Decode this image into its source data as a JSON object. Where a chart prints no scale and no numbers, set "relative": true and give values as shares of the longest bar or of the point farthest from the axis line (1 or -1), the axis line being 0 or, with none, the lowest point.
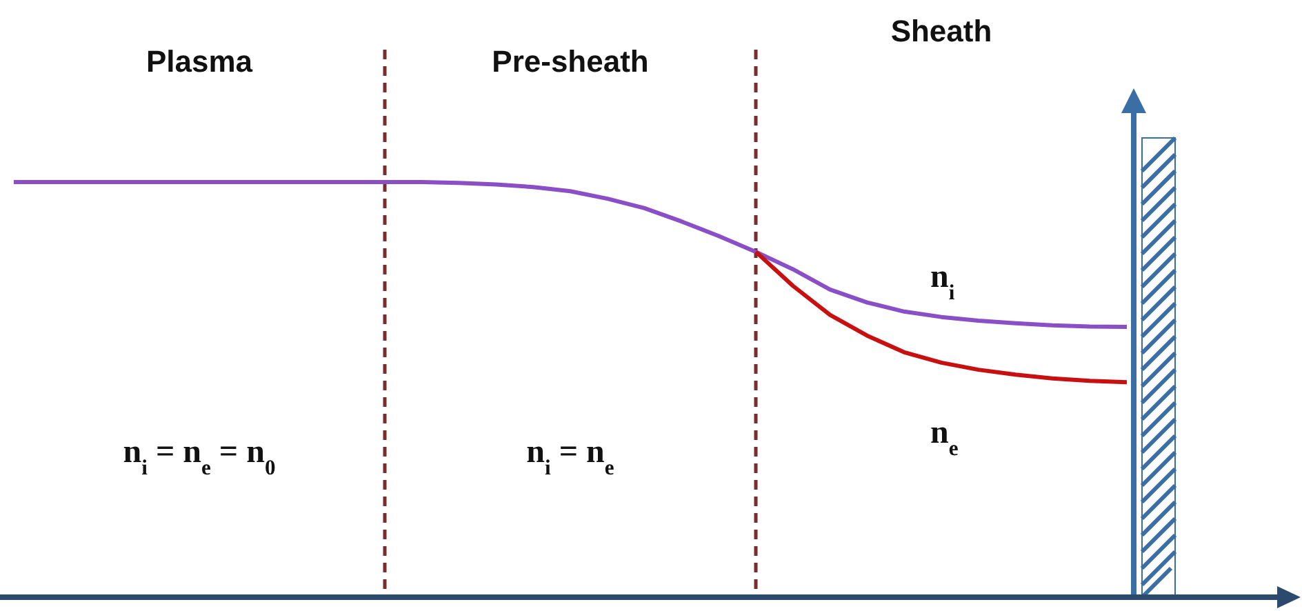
{
  "chart_data": {
    "type": "line",
    "relative": true,
    "categories": [
      null,
      null,
      null,
      null,
      null,
      null,
      null,
      null,
      null,
      null,
      null,
      null,
      null,
      null,
      null,
      null,
      null,
      null,
      null,
      null,
      null,
      null,
      null,
      null,
      null,
      null,
      null,
      null,
      null,
      null,
      null
    ],
    "series": [
      {
        "name": "n$_{i}$",
        "color": "#8a4fc6",
        "values": [
          1,
          1,
          1,
          1,
          1,
          1,
          1,
          1,
          1,
          1,
          1,
          1,
          0.998,
          0.994,
          0.988,
          0.978,
          0.96,
          0.937,
          0.905,
          0.87,
          0.832,
          0.79,
          0.741,
          0.71,
          0.688,
          0.675,
          0.666,
          0.66,
          0.655,
          0.652,
          0.651
        ]
      },
      {
        "name": "n$_{e}$",
        "color": "#c81010",
        "values": [
          null,
          null,
          null,
          null,
          null,
          null,
          null,
          null,
          null,
          null,
          null,
          null,
          null,
          null,
          null,
          null,
          null,
          null,
          null,
          null,
          0.832,
          0.75,
          0.68,
          0.63,
          0.59,
          0.565,
          0.548,
          0.536,
          0.527,
          0.521,
          0.518
        ]
      }
    ],
    "annotations": [
      "Plasma",
      "Pre-sheath",
      "Sheath",
      "n$_{i}$ = n$_{e}$ = n$_{0}$",
      "n$_{i}$ = n$_{e}$"
    ]
  }
}
